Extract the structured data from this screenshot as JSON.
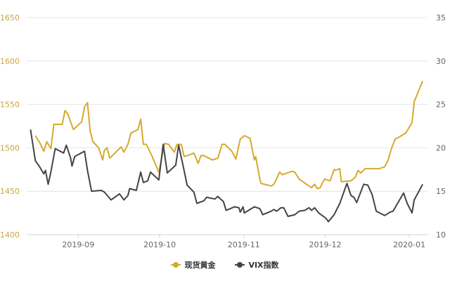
{
  "chart_data": {
    "type": "line",
    "title": "",
    "x_unit": "days since 2019-09-01",
    "xlim": [
      -19,
      128.7
    ],
    "x_ticks": [
      {
        "x": 0,
        "label": "2019-09"
      },
      {
        "x": 30,
        "label": "2019-10"
      },
      {
        "x": 61,
        "label": "2019-11"
      },
      {
        "x": 91,
        "label": "2019-12"
      },
      {
        "x": 122,
        "label": "2020-01"
      }
    ],
    "y_left": {
      "range": [
        1400,
        1650
      ],
      "ticks": [
        "1400",
        "1450",
        "1500",
        "1550",
        "1600",
        "1650"
      ]
    },
    "y_right": {
      "range": [
        10,
        35
      ],
      "ticks": [
        "10",
        "15",
        "20",
        "25",
        "30",
        "35"
      ]
    },
    "grid": true,
    "legend_position": "bottom",
    "series": [
      {
        "name": "现货黄金",
        "axis": "left",
        "color": "#d6aa2c",
        "points": [
          [
            -15.8,
            1514
          ],
          [
            -14.2,
            1506
          ],
          [
            -12.7,
            1496
          ],
          [
            -11.6,
            1507
          ],
          [
            -10.1,
            1499
          ],
          [
            -9.0,
            1527
          ],
          [
            -5.9,
            1527
          ],
          [
            -4.9,
            1543
          ],
          [
            -3.9,
            1539
          ],
          [
            -1.8,
            1521
          ],
          [
            1.3,
            1530
          ],
          [
            2.3,
            1547
          ],
          [
            3.4,
            1552
          ],
          [
            4.4,
            1519
          ],
          [
            5.4,
            1507
          ],
          [
            7.5,
            1500
          ],
          [
            9.0,
            1486
          ],
          [
            9.6,
            1497
          ],
          [
            10.6,
            1500
          ],
          [
            11.6,
            1488
          ],
          [
            15.8,
            1501
          ],
          [
            16.8,
            1495
          ],
          [
            18.3,
            1504
          ],
          [
            19.4,
            1517
          ],
          [
            22.0,
            1521
          ],
          [
            23.0,
            1533
          ],
          [
            24.0,
            1504
          ],
          [
            25.1,
            1504
          ],
          [
            27.1,
            1491
          ],
          [
            29.7,
            1472
          ],
          [
            31.8,
            1505
          ],
          [
            33.3,
            1504
          ],
          [
            35.4,
            1495
          ],
          [
            36.4,
            1504
          ],
          [
            38.0,
            1504
          ],
          [
            39.0,
            1490
          ],
          [
            41.1,
            1492
          ],
          [
            42.6,
            1494
          ],
          [
            44.2,
            1482
          ],
          [
            45.2,
            1491
          ],
          [
            46.3,
            1491
          ],
          [
            49.4,
            1486
          ],
          [
            51.4,
            1488
          ],
          [
            53.0,
            1504
          ],
          [
            54.0,
            1504
          ],
          [
            56.6,
            1496
          ],
          [
            58.1,
            1487
          ],
          [
            59.7,
            1510
          ],
          [
            61.2,
            1514
          ],
          [
            63.3,
            1511
          ],
          [
            64.9,
            1486
          ],
          [
            65.4,
            1490
          ],
          [
            66.9,
            1464
          ],
          [
            67.4,
            1459
          ],
          [
            71.1,
            1456
          ],
          [
            72.1,
            1458
          ],
          [
            74.2,
            1472
          ],
          [
            75.2,
            1469
          ],
          [
            78.8,
            1473
          ],
          [
            79.8,
            1472
          ],
          [
            81.4,
            1464
          ],
          [
            86.0,
            1454
          ],
          [
            87.1,
            1458
          ],
          [
            88.1,
            1453
          ],
          [
            89.1,
            1454
          ],
          [
            90.7,
            1464
          ],
          [
            92.8,
            1462
          ],
          [
            94.3,
            1475
          ],
          [
            94.8,
            1474
          ],
          [
            96.4,
            1476
          ],
          [
            96.9,
            1461
          ],
          [
            100.5,
            1462
          ],
          [
            102.1,
            1466
          ],
          [
            103.1,
            1474
          ],
          [
            104.1,
            1471
          ],
          [
            105.7,
            1476
          ],
          [
            110.9,
            1476
          ],
          [
            112.9,
            1478
          ],
          [
            114.2,
            1486
          ],
          [
            115.5,
            1500
          ],
          [
            116.8,
            1510
          ],
          [
            118.0,
            1512
          ],
          [
            120.7,
            1517
          ],
          [
            123.0,
            1529
          ],
          [
            123.8,
            1553
          ],
          [
            126.9,
            1577
          ]
        ]
      },
      {
        "name": "VIX指数",
        "axis": "right",
        "color": "#444444",
        "points": [
          [
            -17.6,
            22.1
          ],
          [
            -15.8,
            18.5
          ],
          [
            -14.2,
            17.8
          ],
          [
            -12.7,
            17.0
          ],
          [
            -12.1,
            17.4
          ],
          [
            -11.1,
            15.8
          ],
          [
            -10.1,
            17.2
          ],
          [
            -8.5,
            19.9
          ],
          [
            -5.4,
            19.4
          ],
          [
            -4.4,
            20.3
          ],
          [
            -2.8,
            18.8
          ],
          [
            -2.3,
            17.9
          ],
          [
            -1.3,
            19.0
          ],
          [
            2.3,
            19.6
          ],
          [
            3.4,
            17.4
          ],
          [
            4.9,
            15.0
          ],
          [
            8.5,
            15.1
          ],
          [
            9.6,
            14.9
          ],
          [
            12.1,
            14.0
          ],
          [
            15.2,
            14.7
          ],
          [
            16.8,
            14.0
          ],
          [
            18.3,
            14.5
          ],
          [
            18.9,
            15.3
          ],
          [
            21.4,
            15.1
          ],
          [
            23.0,
            17.2
          ],
          [
            24.0,
            16.0
          ],
          [
            25.6,
            16.2
          ],
          [
            26.6,
            17.2
          ],
          [
            29.7,
            16.3
          ],
          [
            31.3,
            20.4
          ],
          [
            32.8,
            17.1
          ],
          [
            35.9,
            18.0
          ],
          [
            37.0,
            20.3
          ],
          [
            39.0,
            17.4
          ],
          [
            40.1,
            15.7
          ],
          [
            42.6,
            14.9
          ],
          [
            43.7,
            13.6
          ],
          [
            46.3,
            13.9
          ],
          [
            47.3,
            14.3
          ],
          [
            50.4,
            14.1
          ],
          [
            51.4,
            14.4
          ],
          [
            53.5,
            13.8
          ],
          [
            54.5,
            12.8
          ],
          [
            57.6,
            13.2
          ],
          [
            59.2,
            13.1
          ],
          [
            59.7,
            12.6
          ],
          [
            60.7,
            13.2
          ],
          [
            61.2,
            12.5
          ],
          [
            64.9,
            13.2
          ],
          [
            66.9,
            13.0
          ],
          [
            68.0,
            12.3
          ],
          [
            71.1,
            12.7
          ],
          [
            72.1,
            12.9
          ],
          [
            73.1,
            12.7
          ],
          [
            74.7,
            13.1
          ],
          [
            75.7,
            13.1
          ],
          [
            77.3,
            12.1
          ],
          [
            79.8,
            12.3
          ],
          [
            81.4,
            12.7
          ],
          [
            83.5,
            12.8
          ],
          [
            85.0,
            13.1
          ],
          [
            86.0,
            12.8
          ],
          [
            87.1,
            13.1
          ],
          [
            88.6,
            12.5
          ],
          [
            91.2,
            11.9
          ],
          [
            92.2,
            11.5
          ],
          [
            94.3,
            12.3
          ],
          [
            96.4,
            13.6
          ],
          [
            99.0,
            15.9
          ],
          [
            100.5,
            14.5
          ],
          [
            101.6,
            14.3
          ],
          [
            102.6,
            13.7
          ],
          [
            105.2,
            15.8
          ],
          [
            106.7,
            15.7
          ],
          [
            108.3,
            14.6
          ],
          [
            109.8,
            12.7
          ],
          [
            112.9,
            12.2
          ],
          [
            115.0,
            12.6
          ],
          [
            116.0,
            12.7
          ],
          [
            117.3,
            13.4
          ],
          [
            119.9,
            14.8
          ],
          [
            121.2,
            13.6
          ],
          [
            123.0,
            12.5
          ],
          [
            123.8,
            14.0
          ],
          [
            126.9,
            15.8
          ]
        ]
      }
    ]
  },
  "legend": {
    "gold_label": "现货黄金",
    "vix_label": "VIX指数"
  }
}
